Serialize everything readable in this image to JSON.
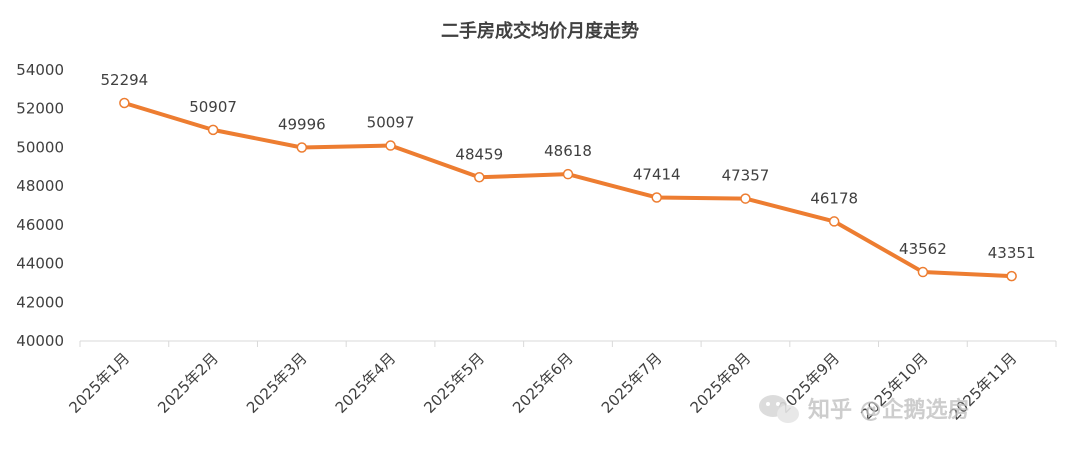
{
  "chart_data": {
    "type": "line",
    "title": "二手房成交均价月度走势",
    "categories": [
      "2025年1月",
      "2025年2月",
      "2025年3月",
      "2025年4月",
      "2025年5月",
      "2025年6月",
      "2025年7月",
      "2025年8月",
      "2025年9月",
      "2025年10月",
      "2025年11月"
    ],
    "series": [
      {
        "values": [
          52294,
          50907,
          49996,
          50097,
          48459,
          48618,
          47414,
          47357,
          46178,
          43562,
          43351
        ]
      }
    ],
    "ylim": [
      40000,
      54000
    ],
    "yticks": [
      "40000",
      "42000",
      "44000",
      "46000",
      "48000",
      "50000",
      "52000",
      "54000"
    ],
    "grid": false,
    "data_labels": true,
    "color": "#ed7d31"
  },
  "watermark": {
    "icon": "wechat-icon",
    "text": "知乎 @企鹅选房"
  }
}
